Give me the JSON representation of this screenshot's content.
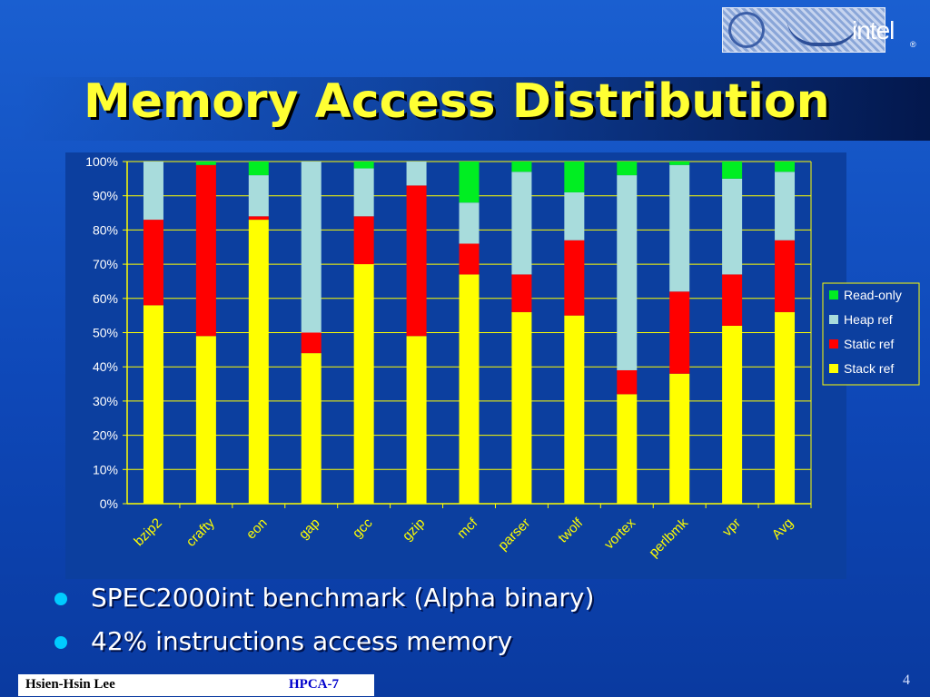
{
  "slide": {
    "title": "Memory Access Distribution",
    "logo_text": "intel",
    "logo_reg": "®",
    "bullets": [
      "SPEC2000int benchmark (Alpha binary)",
      "42% instructions access memory"
    ],
    "footer_author": "Hsien-Hsin Lee",
    "footer_conf": "HPCA-7",
    "page_number": "4"
  },
  "colors": {
    "Stack ref": "#ffff00",
    "Static ref": "#ff0000",
    "Heap ref": "#a8dcdc",
    "Read-only": "#00ee22",
    "title": "#ffff33",
    "bullet": "#00ccff"
  },
  "chart_data": {
    "type": "bar",
    "stacked": true,
    "percent": true,
    "categories": [
      "bzip2",
      "crafty",
      "eon",
      "gap",
      "gcc",
      "gzip",
      "mcf",
      "parser",
      "twolf",
      "vortex",
      "perlbmk",
      "vpr",
      "Avg"
    ],
    "series": [
      {
        "name": "Stack ref",
        "values": [
          58,
          49,
          83,
          44,
          70,
          49,
          67,
          56,
          55,
          32,
          38,
          52,
          56
        ]
      },
      {
        "name": "Static ref",
        "values": [
          25,
          50,
          1,
          6,
          14,
          44,
          9,
          11,
          22,
          7,
          24,
          15,
          21
        ]
      },
      {
        "name": "Heap ref",
        "values": [
          17,
          0,
          12,
          50,
          14,
          7,
          12,
          30,
          14,
          57,
          37,
          28,
          20
        ]
      },
      {
        "name": "Read-only",
        "values": [
          0,
          1,
          4,
          0,
          2,
          0,
          12,
          3,
          9,
          4,
          1,
          5,
          3
        ]
      }
    ],
    "legend_order": [
      "Read-only",
      "Heap ref",
      "Static ref",
      "Stack ref"
    ],
    "yticks": [
      "0%",
      "10%",
      "20%",
      "30%",
      "40%",
      "50%",
      "60%",
      "70%",
      "80%",
      "90%",
      "100%"
    ],
    "ylim": [
      0,
      100
    ],
    "legend_position": "right",
    "grid": true
  }
}
